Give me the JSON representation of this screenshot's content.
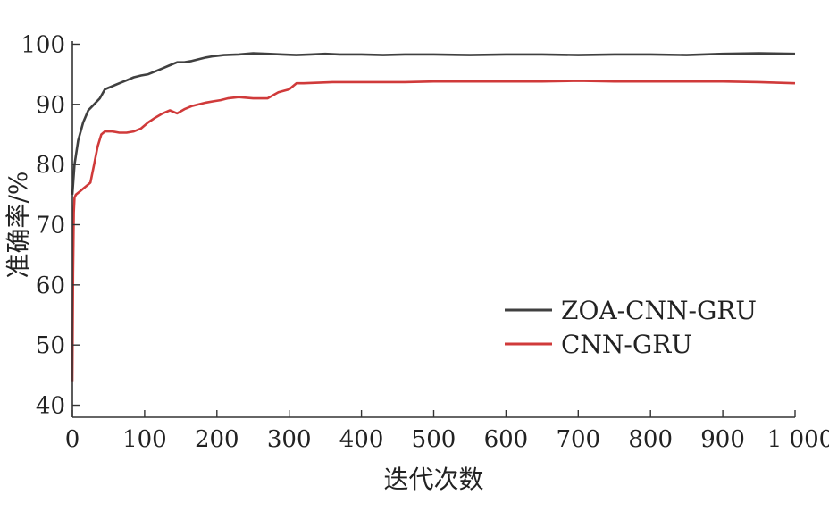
{
  "chart_data": {
    "type": "line",
    "xlabel": "迭代次数",
    "ylabel": "准确率/%",
    "xlim": [
      0,
      1000
    ],
    "ylim": [
      38,
      102
    ],
    "x_ticks": [
      0,
      100,
      200,
      300,
      400,
      500,
      600,
      700,
      800,
      900,
      1000
    ],
    "x_tick_labels": [
      "0",
      "100",
      "200",
      "300",
      "400",
      "500",
      "600",
      "700",
      "800",
      "900",
      "1 000"
    ],
    "y_ticks": [
      40,
      50,
      60,
      70,
      80,
      90,
      100
    ],
    "y_tick_labels": [
      "40",
      "50",
      "60",
      "70",
      "80",
      "90",
      "100"
    ],
    "grid": false,
    "legend_position": "center-right",
    "series": [
      {
        "name": "ZOA-CNN-GRU",
        "color": "#404040",
        "x": [
          0,
          3,
          8,
          15,
          22,
          30,
          38,
          45,
          55,
          65,
          75,
          85,
          95,
          105,
          115,
          125,
          135,
          145,
          155,
          165,
          175,
          185,
          195,
          210,
          230,
          250,
          270,
          290,
          310,
          330,
          350,
          370,
          400,
          430,
          460,
          500,
          550,
          600,
          650,
          700,
          750,
          800,
          850,
          900,
          950,
          1000
        ],
        "y": [
          75,
          80,
          84,
          87,
          89,
          90,
          91,
          92.5,
          93,
          93.5,
          94,
          94.5,
          94.8,
          95,
          95.5,
          96,
          96.5,
          97,
          97,
          97.2,
          97.5,
          97.8,
          98,
          98.2,
          98.3,
          98.5,
          98.4,
          98.3,
          98.2,
          98.3,
          98.4,
          98.3,
          98.3,
          98.2,
          98.3,
          98.3,
          98.2,
          98.3,
          98.3,
          98.2,
          98.3,
          98.3,
          98.2,
          98.4,
          98.5,
          98.4
        ]
      },
      {
        "name": "CNN-GRU",
        "color": "#d03a3a",
        "x": [
          0,
          1,
          2,
          3,
          5,
          10,
          15,
          20,
          25,
          30,
          35,
          40,
          45,
          55,
          65,
          75,
          85,
          95,
          105,
          115,
          125,
          135,
          145,
          155,
          165,
          175,
          185,
          195,
          205,
          215,
          230,
          250,
          270,
          285,
          300,
          310,
          320,
          340,
          360,
          380,
          400,
          430,
          460,
          500,
          550,
          600,
          650,
          700,
          750,
          800,
          850,
          900,
          950,
          1000
        ],
        "y": [
          44,
          62,
          72,
          74.5,
          75,
          75.5,
          76,
          76.5,
          77,
          80,
          83,
          85,
          85.5,
          85.5,
          85.3,
          85.3,
          85.5,
          86,
          87,
          87.8,
          88.5,
          89,
          88.5,
          89.2,
          89.7,
          90,
          90.3,
          90.5,
          90.7,
          91,
          91.2,
          91,
          91,
          92,
          92.5,
          93.5,
          93.5,
          93.6,
          93.7,
          93.7,
          93.7,
          93.7,
          93.7,
          93.8,
          93.8,
          93.8,
          93.8,
          93.9,
          93.8,
          93.8,
          93.8,
          93.8,
          93.7,
          93.5
        ]
      }
    ]
  }
}
